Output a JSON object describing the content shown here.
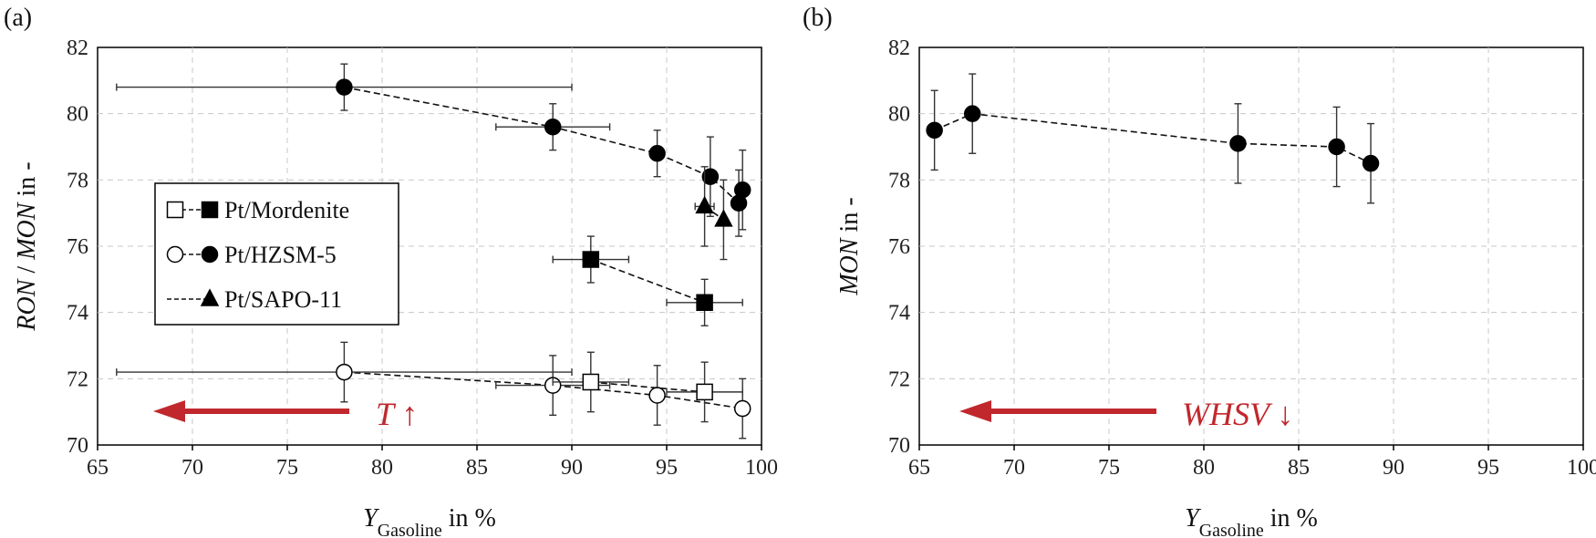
{
  "chart_data": [
    {
      "type": "scatter",
      "panel_label": "(a)",
      "ylabel": "RON / MON in -",
      "ylabel_parts": [
        {
          "text": "RON",
          "italic": true
        },
        {
          "text": " / ",
          "italic": false
        },
        {
          "text": "MON",
          "italic": true
        },
        {
          "text": " in -",
          "italic": false
        }
      ],
      "xlabel_parts": [
        {
          "text": "Y",
          "italic": true,
          "sub": false
        },
        {
          "text": "Gasoline",
          "italic": false,
          "sub": true
        },
        {
          "text": " in %",
          "italic": false,
          "sub": false
        }
      ],
      "xlim": [
        65,
        100
      ],
      "ylim": [
        70,
        82
      ],
      "xticks": [
        65,
        70,
        75,
        80,
        85,
        90,
        95,
        100
      ],
      "yticks": [
        70,
        72,
        74,
        76,
        78,
        80,
        82
      ],
      "grid": true,
      "legend": {
        "placement": "left-middle",
        "entries": [
          {
            "label": "Pt/Mordenite",
            "open_marker": "square",
            "filled_marker": "square"
          },
          {
            "label": "Pt/HZSM-5",
            "open_marker": "circle",
            "filled_marker": "circle"
          },
          {
            "label": "Pt/SAPO-11",
            "open_marker": "",
            "filled_marker": "triangle"
          }
        ]
      },
      "annotation": {
        "text": "T ↑",
        "color": "#c0282d",
        "direction": "left"
      },
      "series": [
        {
          "name": "Pt/HZSM-5 RON",
          "marker": "circle",
          "fill": "filled",
          "points": [
            {
              "x": 78,
              "y": 80.8,
              "xerr_low": 12,
              "xerr_high": 12,
              "yerr": 0.7
            },
            {
              "x": 89,
              "y": 79.6,
              "xerr_low": 3,
              "xerr_high": 3,
              "yerr": 0.7
            },
            {
              "x": 94.5,
              "y": 78.8,
              "xerr_low": 0,
              "xerr_high": 0,
              "yerr": 0.7
            },
            {
              "x": 97.3,
              "y": 78.1,
              "xerr_low": 0,
              "xerr_high": 0,
              "yerr": 1.2
            },
            {
              "x": 98.8,
              "y": 77.3,
              "xerr_low": 0,
              "xerr_high": 0,
              "yerr": 1.0
            },
            {
              "x": 99,
              "y": 77.7,
              "xerr_low": 0,
              "xerr_high": 0,
              "yerr": 1.2
            }
          ]
        },
        {
          "name": "Pt/Mordenite RON",
          "marker": "square",
          "fill": "filled",
          "points": [
            {
              "x": 91,
              "y": 75.6,
              "xerr_low": 2,
              "xerr_high": 2,
              "yerr": 0.7
            },
            {
              "x": 97,
              "y": 74.3,
              "xerr_low": 2,
              "xerr_high": 2,
              "yerr": 0.7
            }
          ]
        },
        {
          "name": "Pt/SAPO-11 RON",
          "marker": "triangle",
          "fill": "filled",
          "points": [
            {
              "x": 97,
              "y": 77.2,
              "xerr_low": 0.5,
              "xerr_high": 0.5,
              "yerr": 1.2
            },
            {
              "x": 98,
              "y": 76.8,
              "xerr_low": 0,
              "xerr_high": 0,
              "yerr": 1.2
            }
          ]
        },
        {
          "name": "Pt/HZSM-5 MON",
          "marker": "circle",
          "fill": "open",
          "points": [
            {
              "x": 78,
              "y": 72.2,
              "xerr_low": 12,
              "xerr_high": 12,
              "yerr": 0.9
            },
            {
              "x": 89,
              "y": 71.8,
              "xerr_low": 3,
              "xerr_high": 3,
              "yerr": 0.9
            },
            {
              "x": 94.5,
              "y": 71.5,
              "xerr_low": 0,
              "xerr_high": 0,
              "yerr": 0.9
            },
            {
              "x": 99,
              "y": 71.1,
              "xerr_low": 0,
              "xerr_high": 0,
              "yerr": 0.9
            }
          ]
        },
        {
          "name": "Pt/Mordenite MON",
          "marker": "square",
          "fill": "open",
          "points": [
            {
              "x": 91,
              "y": 71.9,
              "xerr_low": 2,
              "xerr_high": 2,
              "yerr": 0.9
            },
            {
              "x": 97,
              "y": 71.6,
              "xerr_low": 2,
              "xerr_high": 2,
              "yerr": 0.9
            }
          ]
        }
      ]
    },
    {
      "type": "scatter",
      "panel_label": "(b)",
      "ylabel": "MON in -",
      "ylabel_parts": [
        {
          "text": "MON",
          "italic": true
        },
        {
          "text": " in -",
          "italic": false
        }
      ],
      "xlabel_parts": [
        {
          "text": "Y",
          "italic": true,
          "sub": false
        },
        {
          "text": "Gasoline",
          "italic": false,
          "sub": true
        },
        {
          "text": " in %",
          "italic": false,
          "sub": false
        }
      ],
      "xlim": [
        65,
        100
      ],
      "ylim": [
        70,
        82
      ],
      "xticks": [
        65,
        70,
        75,
        80,
        85,
        90,
        95,
        100
      ],
      "yticks": [
        70,
        72,
        74,
        76,
        78,
        80,
        82
      ],
      "grid": true,
      "annotation": {
        "text": "WHSV ↓",
        "color": "#c0282d",
        "direction": "left"
      },
      "series": [
        {
          "name": "MON",
          "marker": "circle",
          "fill": "filled",
          "points": [
            {
              "x": 65.8,
              "y": 79.5,
              "xerr_low": 0,
              "xerr_high": 0,
              "yerr": 1.2
            },
            {
              "x": 67.8,
              "y": 80.0,
              "xerr_low": 0,
              "xerr_high": 0,
              "yerr": 1.2
            },
            {
              "x": 81.8,
              "y": 79.1,
              "xerr_low": 0,
              "xerr_high": 0,
              "yerr": 1.2
            },
            {
              "x": 87.0,
              "y": 79.0,
              "xerr_low": 0,
              "xerr_high": 0,
              "yerr": 1.2
            },
            {
              "x": 88.8,
              "y": 78.5,
              "xerr_low": 0,
              "xerr_high": 0,
              "yerr": 1.2
            }
          ]
        }
      ]
    }
  ]
}
